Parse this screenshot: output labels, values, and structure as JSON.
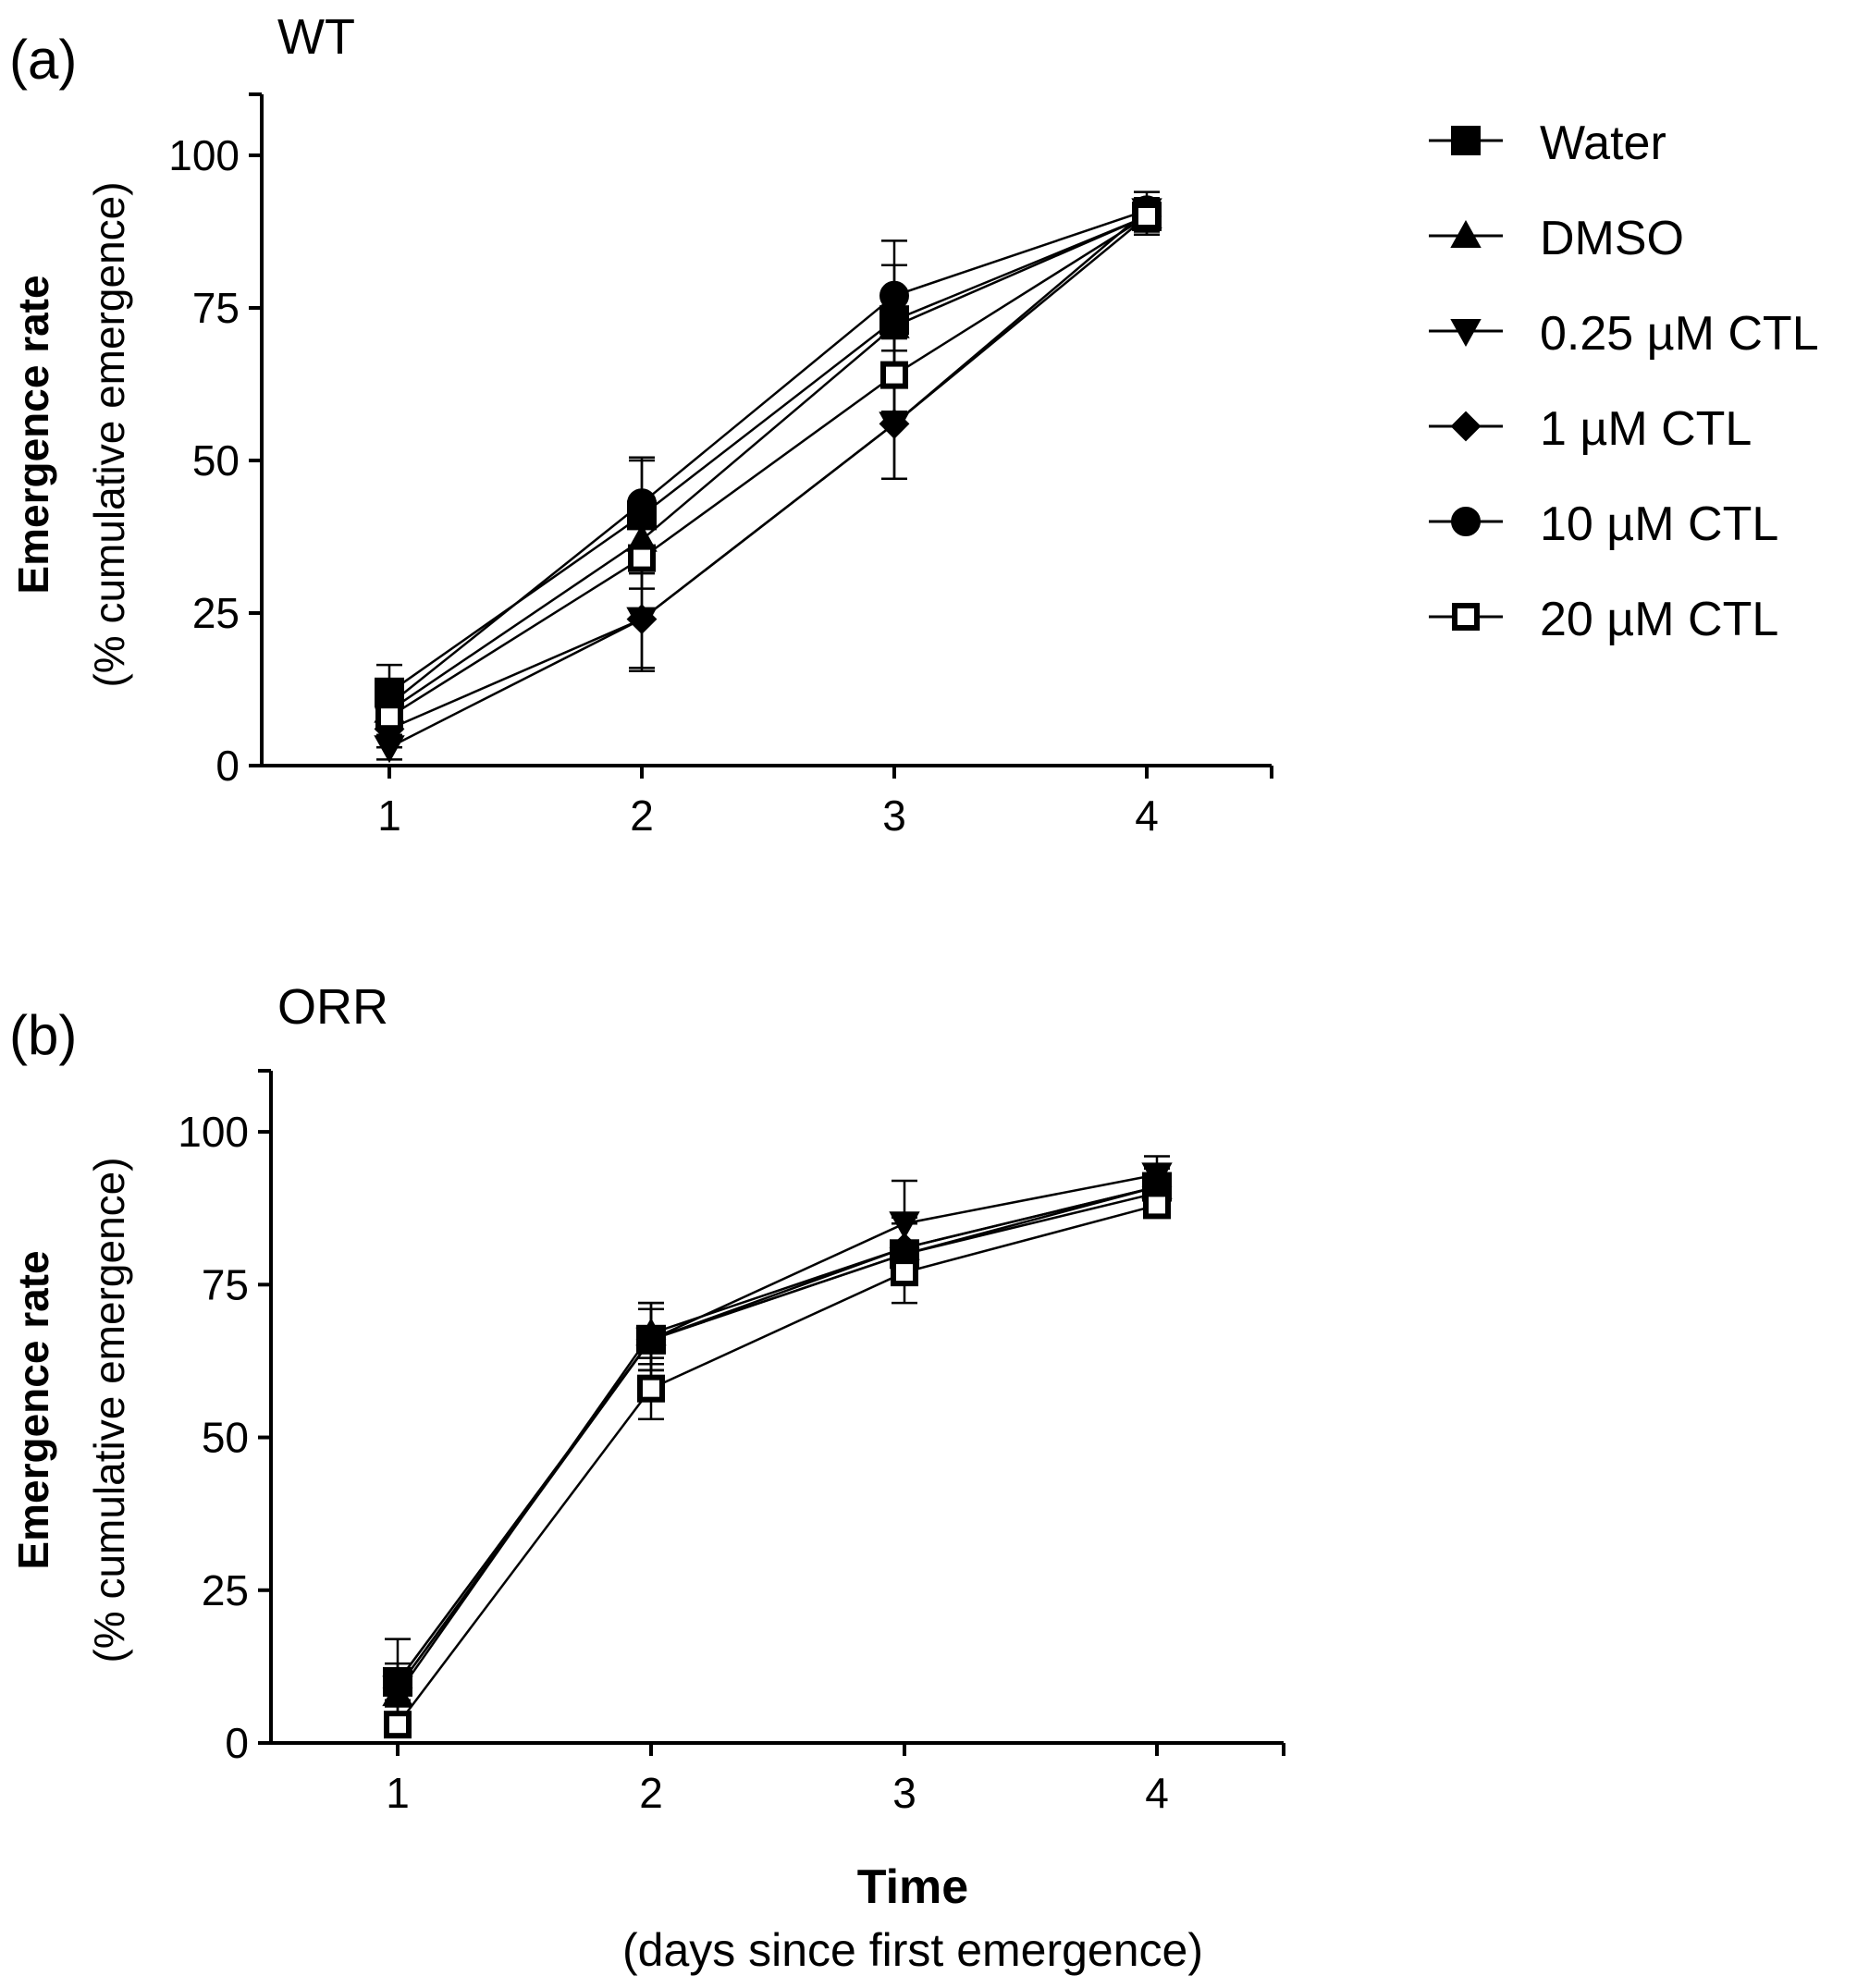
{
  "chart_data": [
    {
      "type": "line",
      "panel_label": "(a)",
      "title": "WT",
      "ylabel": "Emergence rate",
      "ylabel_sub": "(% cumulative emergence)",
      "xlabel": "",
      "xlabel_sub": "",
      "x": [
        1,
        2,
        3,
        4
      ],
      "x_ticks": [
        "1",
        "2",
        "3",
        "4"
      ],
      "ylim": [
        0,
        110
      ],
      "y_ticks": [
        "0",
        "25",
        "50",
        "75",
        "100"
      ],
      "series": [
        {
          "name": "Water",
          "marker": "square-filled",
          "values": [
            12,
            41,
            73,
            90
          ],
          "errors": [
            4.5,
            9.5,
            9,
            3
          ]
        },
        {
          "name": "DMSO",
          "marker": "triangle-up",
          "values": [
            9,
            37,
            72,
            90
          ],
          "errors": [
            4,
            5,
            6,
            2.5
          ]
        },
        {
          "name": "0.25 µM CTL",
          "marker": "triangle-down",
          "values": [
            3,
            24,
            56,
            91
          ],
          "errors": [
            2,
            8,
            9,
            2
          ]
        },
        {
          "name": "1 µM CTL",
          "marker": "diamond",
          "values": [
            6,
            24,
            56,
            90
          ],
          "errors": [
            3,
            8.5,
            9,
            3
          ]
        },
        {
          "name": "10 µM CTL",
          "marker": "circle",
          "values": [
            10,
            43,
            77,
            91
          ],
          "errors": [
            4,
            7,
            9,
            3
          ]
        },
        {
          "name": "20 µM CTL",
          "marker": "square-open",
          "values": [
            8,
            34,
            64,
            90
          ],
          "errors": [
            3,
            5,
            6,
            2
          ]
        }
      ]
    },
    {
      "type": "line",
      "panel_label": "(b)",
      "title": "ORR",
      "ylabel": "Emergence rate",
      "ylabel_sub": "(% cumulative emergence)",
      "xlabel": "Time",
      "xlabel_sub": "(days since first emergence)",
      "x": [
        1,
        2,
        3,
        4
      ],
      "x_ticks": [
        "1",
        "2",
        "3",
        "4"
      ],
      "ylim": [
        0,
        110
      ],
      "y_ticks": [
        "0",
        "25",
        "50",
        "75",
        "100"
      ],
      "series": [
        {
          "name": "Water",
          "marker": "square-filled",
          "values": [
            10,
            66,
            80,
            91
          ],
          "errors": [
            3,
            5,
            5,
            3
          ]
        },
        {
          "name": "DMSO",
          "marker": "triangle-up",
          "values": [
            8,
            67,
            81,
            91
          ],
          "errors": [
            3,
            5,
            5,
            3
          ]
        },
        {
          "name": "0.25 µM CTL",
          "marker": "triangle-down",
          "values": [
            9,
            66,
            85,
            93
          ],
          "errors": [
            3,
            5,
            7,
            3
          ]
        },
        {
          "name": "1 µM CTL",
          "marker": "diamond",
          "values": [
            9,
            66,
            81,
            91
          ],
          "errors": [
            3,
            5,
            5,
            3
          ]
        },
        {
          "name": "10 µM CTL",
          "marker": "circle",
          "values": [
            10,
            66,
            80,
            90
          ],
          "errors": [
            7,
            6,
            5,
            3
          ]
        },
        {
          "name": "20 µM CTL",
          "marker": "square-open",
          "values": [
            3,
            58,
            77,
            88
          ],
          "errors": [
            2,
            5,
            5,
            2
          ]
        }
      ]
    }
  ],
  "legend": {
    "placement": "right",
    "items": [
      {
        "label": "Water",
        "marker": "square-filled"
      },
      {
        "label": "DMSO",
        "marker": "triangle-up"
      },
      {
        "label": "0.25 µM CTL",
        "marker": "triangle-down"
      },
      {
        "label": "1 µM CTL",
        "marker": "diamond"
      },
      {
        "label": "10 µM CTL",
        "marker": "circle"
      },
      {
        "label": "20 µM CTL",
        "marker": "square-open"
      }
    ]
  },
  "colors": {
    "ink": "#000000",
    "background": "#ffffff"
  }
}
